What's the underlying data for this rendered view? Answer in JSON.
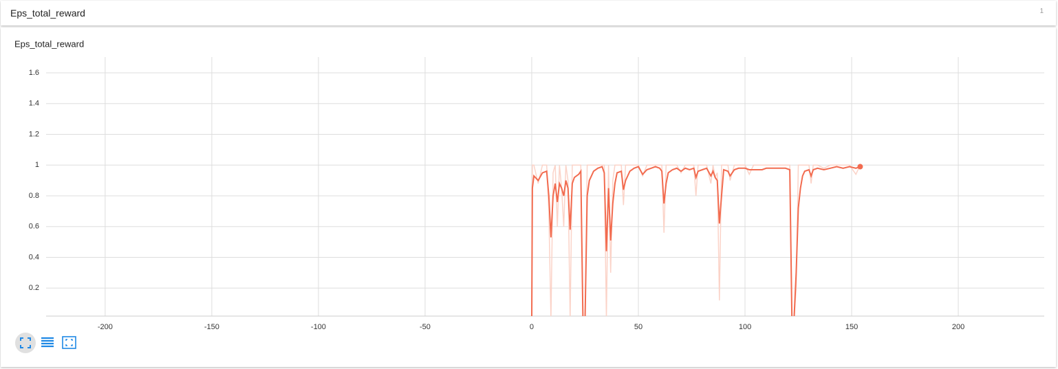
{
  "header": {
    "title": "Eps_total_reward",
    "badge": "1"
  },
  "chart_data": {
    "type": "line",
    "title": "Eps_total_reward",
    "x": [
      0,
      0.3,
      1,
      3,
      5,
      7,
      8,
      9,
      10,
      11,
      12,
      13,
      14,
      15,
      16,
      17,
      18,
      19,
      20,
      22,
      23,
      24,
      25,
      26,
      27,
      29,
      31,
      33,
      34,
      35,
      36,
      37,
      38,
      39,
      40,
      42,
      43,
      44,
      46,
      48,
      50,
      52,
      54,
      56,
      58,
      60,
      61,
      62,
      63,
      64,
      66,
      68,
      70,
      72,
      74,
      76,
      77,
      78,
      80,
      82,
      84,
      85,
      86,
      87,
      88,
      89,
      90,
      92,
      93,
      95,
      97,
      100,
      102,
      104,
      106,
      108,
      110,
      113,
      116,
      119,
      121,
      122,
      123,
      124,
      125,
      126,
      127,
      128,
      130,
      131,
      132,
      134,
      137,
      140,
      143,
      146,
      149,
      152,
      154
    ],
    "series": [
      {
        "color": "#fbd3c8",
        "values": [
          0,
          1,
          1,
          0.88,
          1,
          1,
          0.7,
          0,
          0.95,
          1,
          0.6,
          1,
          0.85,
          0.6,
          1,
          0.9,
          0,
          1,
          1,
          1,
          1,
          0,
          0,
          1,
          1,
          1,
          1,
          1,
          1,
          0,
          1,
          0.3,
          0.9,
          1,
          1,
          1,
          0.74,
          1,
          1,
          1,
          1,
          0.93,
          1,
          1,
          1,
          1,
          1,
          0.56,
          1,
          1,
          1,
          1,
          0.95,
          1,
          1,
          1,
          0.8,
          1,
          1,
          1,
          0.88,
          1,
          0.92,
          0.95,
          0.12,
          1,
          1,
          1,
          0.9,
          1,
          1,
          1,
          0.94,
          1,
          1,
          1,
          1,
          1,
          1,
          1,
          1,
          0,
          0,
          0.2,
          1,
          1,
          1,
          1,
          1,
          0.88,
          1,
          1,
          0.98,
          1,
          1,
          1,
          1,
          0.94,
          1
        ]
      },
      {
        "color": "#f26b4f",
        "values": [
          0,
          0.85,
          0.93,
          0.9,
          0.95,
          0.96,
          0.8,
          0.53,
          0.8,
          0.88,
          0.76,
          0.88,
          0.85,
          0.8,
          0.9,
          0.85,
          0.58,
          0.88,
          0.92,
          0.94,
          0.96,
          0,
          0,
          0.8,
          0.9,
          0.96,
          0.98,
          0.99,
          0.95,
          0.44,
          0.85,
          0.51,
          0.75,
          0.88,
          0.95,
          0.96,
          0.84,
          0.9,
          0.96,
          0.98,
          0.99,
          0.94,
          0.97,
          0.98,
          0.99,
          0.98,
          0.96,
          0.75,
          0.88,
          0.95,
          0.97,
          0.98,
          0.96,
          0.98,
          0.97,
          0.98,
          0.92,
          0.96,
          0.97,
          0.98,
          0.93,
          0.96,
          0.92,
          0.9,
          0.62,
          0.8,
          0.97,
          0.96,
          0.93,
          0.97,
          0.98,
          0.98,
          0.97,
          0.97,
          0.97,
          0.97,
          0.98,
          0.98,
          0.98,
          0.98,
          0.97,
          0,
          0,
          0.3,
          0.72,
          0.85,
          0.93,
          0.96,
          0.97,
          0.93,
          0.97,
          0.98,
          0.97,
          0.98,
          0.99,
          0.98,
          0.99,
          0.98,
          0.99
        ]
      }
    ],
    "xlim": [
      -227.7,
      240.3
    ],
    "xticks": [
      -200,
      -150,
      -100,
      -50,
      0,
      50,
      100,
      150,
      200
    ],
    "ylim": [
      0.018,
      1.703
    ],
    "yticks": [
      0.2,
      0.4,
      0.6,
      0.8,
      1,
      1.2,
      1.4,
      1.6
    ],
    "grid": true
  }
}
